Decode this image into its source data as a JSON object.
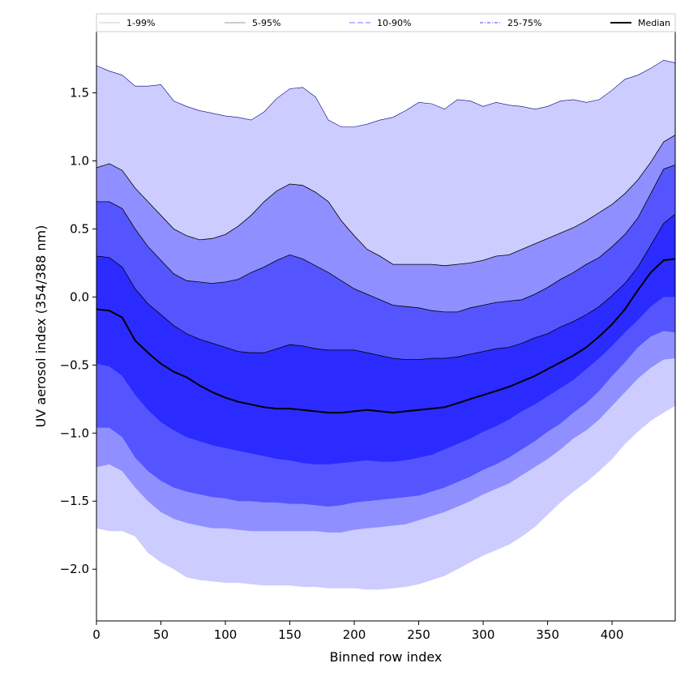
{
  "chart_data": {
    "type": "area",
    "xlabel": "Binned row index",
    "ylabel": "UV aerosol index (354/388 nm)",
    "xlim": [
      0,
      449
    ],
    "ylim": [
      -2.38,
      1.95
    ],
    "xticks": [
      0,
      50,
      100,
      150,
      200,
      250,
      300,
      350,
      400
    ],
    "yticks": [
      1.5,
      1.0,
      0.5,
      0.0,
      -0.5,
      -1.0,
      -1.5,
      -2.0
    ],
    "ytick_labels": [
      "1.5",
      "1.0",
      "0.5",
      "0.0",
      "−0.5",
      "−1.0",
      "−1.5",
      "−2.0"
    ],
    "grid": false,
    "legend_position": "top",
    "x": [
      0,
      10,
      20,
      30,
      40,
      50,
      60,
      70,
      80,
      90,
      100,
      110,
      120,
      130,
      140,
      150,
      160,
      170,
      180,
      190,
      200,
      210,
      220,
      230,
      240,
      250,
      260,
      270,
      280,
      290,
      300,
      310,
      320,
      330,
      340,
      350,
      360,
      370,
      380,
      390,
      400,
      410,
      420,
      430,
      440,
      449
    ],
    "bands": [
      {
        "name": "1-99%",
        "fill": "#ccccff",
        "edge": "#cccccc",
        "dash": "none",
        "upper": [
          1.7,
          1.66,
          1.63,
          1.55,
          1.55,
          1.56,
          1.44,
          1.4,
          1.37,
          1.35,
          1.33,
          1.32,
          1.3,
          1.36,
          1.46,
          1.53,
          1.54,
          1.47,
          1.3,
          1.25,
          1.25,
          1.27,
          1.3,
          1.32,
          1.37,
          1.43,
          1.42,
          1.38,
          1.45,
          1.44,
          1.4,
          1.43,
          1.41,
          1.4,
          1.38,
          1.4,
          1.44,
          1.45,
          1.43,
          1.45,
          1.52,
          1.6,
          1.63,
          1.68,
          1.74,
          1.72
        ],
        "lower": [
          -1.7,
          -1.72,
          -1.72,
          -1.76,
          -1.88,
          -1.95,
          -2.0,
          -2.06,
          -2.08,
          -2.09,
          -2.1,
          -2.1,
          -2.11,
          -2.12,
          -2.12,
          -2.12,
          -2.13,
          -2.13,
          -2.14,
          -2.14,
          -2.14,
          -2.15,
          -2.15,
          -2.14,
          -2.13,
          -2.11,
          -2.08,
          -2.05,
          -2.0,
          -1.95,
          -1.9,
          -1.86,
          -1.82,
          -1.76,
          -1.69,
          -1.6,
          -1.51,
          -1.43,
          -1.36,
          -1.28,
          -1.19,
          -1.08,
          -0.99,
          -0.91,
          -0.85,
          -0.8
        ]
      },
      {
        "name": "5-95%",
        "fill": "#8f8fff",
        "edge": "#999999",
        "dash": "none",
        "upper": [
          0.95,
          0.98,
          0.93,
          0.8,
          0.7,
          0.6,
          0.5,
          0.45,
          0.42,
          0.43,
          0.46,
          0.52,
          0.6,
          0.7,
          0.78,
          0.83,
          0.82,
          0.77,
          0.7,
          0.56,
          0.45,
          0.35,
          0.3,
          0.24,
          0.24,
          0.24,
          0.24,
          0.23,
          0.24,
          0.25,
          0.27,
          0.3,
          0.31,
          0.35,
          0.39,
          0.43,
          0.47,
          0.51,
          0.56,
          0.62,
          0.68,
          0.76,
          0.86,
          0.99,
          1.14,
          1.19
        ],
        "lower": [
          -1.25,
          -1.23,
          -1.28,
          -1.4,
          -1.5,
          -1.58,
          -1.63,
          -1.66,
          -1.68,
          -1.7,
          -1.7,
          -1.71,
          -1.72,
          -1.72,
          -1.72,
          -1.72,
          -1.72,
          -1.72,
          -1.73,
          -1.73,
          -1.71,
          -1.7,
          -1.69,
          -1.68,
          -1.67,
          -1.64,
          -1.61,
          -1.58,
          -1.54,
          -1.5,
          -1.45,
          -1.41,
          -1.37,
          -1.31,
          -1.25,
          -1.19,
          -1.12,
          -1.04,
          -0.98,
          -0.9,
          -0.8,
          -0.7,
          -0.6,
          -0.52,
          -0.46,
          -0.45
        ]
      },
      {
        "name": "10-90%",
        "fill": "#5555ff",
        "edge": "#7777ff",
        "dash": "7,3",
        "upper": [
          0.7,
          0.7,
          0.65,
          0.5,
          0.37,
          0.27,
          0.17,
          0.12,
          0.11,
          0.1,
          0.11,
          0.13,
          0.18,
          0.22,
          0.27,
          0.31,
          0.28,
          0.23,
          0.18,
          0.12,
          0.06,
          0.02,
          -0.02,
          -0.06,
          -0.07,
          -0.08,
          -0.1,
          -0.11,
          -0.11,
          -0.08,
          -0.06,
          -0.04,
          -0.03,
          -0.02,
          0.02,
          0.07,
          0.13,
          0.18,
          0.24,
          0.29,
          0.37,
          0.46,
          0.58,
          0.76,
          0.94,
          0.97
        ],
        "lower": [
          -0.96,
          -0.96,
          -1.03,
          -1.18,
          -1.28,
          -1.35,
          -1.4,
          -1.43,
          -1.45,
          -1.47,
          -1.48,
          -1.5,
          -1.5,
          -1.51,
          -1.51,
          -1.52,
          -1.52,
          -1.53,
          -1.54,
          -1.53,
          -1.51,
          -1.5,
          -1.49,
          -1.48,
          -1.47,
          -1.46,
          -1.43,
          -1.4,
          -1.36,
          -1.32,
          -1.27,
          -1.23,
          -1.18,
          -1.12,
          -1.06,
          -0.99,
          -0.93,
          -0.85,
          -0.78,
          -0.69,
          -0.58,
          -0.48,
          -0.37,
          -0.29,
          -0.25,
          -0.26
        ]
      },
      {
        "name": "25-75%",
        "fill": "#2b2bff",
        "edge": "#4444ee",
        "dash": "4,2,1,2",
        "upper": [
          0.3,
          0.29,
          0.22,
          0.06,
          -0.05,
          -0.13,
          -0.21,
          -0.27,
          -0.31,
          -0.34,
          -0.37,
          -0.4,
          -0.41,
          -0.41,
          -0.38,
          -0.35,
          -0.36,
          -0.38,
          -0.39,
          -0.39,
          -0.39,
          -0.41,
          -0.43,
          -0.45,
          -0.46,
          -0.46,
          -0.45,
          -0.45,
          -0.44,
          -0.42,
          -0.4,
          -0.38,
          -0.37,
          -0.34,
          -0.3,
          -0.27,
          -0.22,
          -0.18,
          -0.13,
          -0.07,
          0.01,
          0.1,
          0.22,
          0.38,
          0.54,
          0.61
        ],
        "lower": [
          -0.49,
          -0.51,
          -0.58,
          -0.72,
          -0.83,
          -0.92,
          -0.98,
          -1.03,
          -1.06,
          -1.09,
          -1.11,
          -1.13,
          -1.15,
          -1.17,
          -1.19,
          -1.2,
          -1.22,
          -1.23,
          -1.23,
          -1.22,
          -1.21,
          -1.2,
          -1.21,
          -1.21,
          -1.2,
          -1.18,
          -1.16,
          -1.12,
          -1.08,
          -1.04,
          -0.99,
          -0.95,
          -0.9,
          -0.84,
          -0.79,
          -0.73,
          -0.67,
          -0.61,
          -0.53,
          -0.45,
          -0.36,
          -0.26,
          -0.17,
          -0.07,
          0.0,
          0.0
        ]
      }
    ],
    "series": [
      {
        "name": "Median",
        "color": "#000000",
        "values": [
          -0.09,
          -0.1,
          -0.15,
          -0.32,
          -0.41,
          -0.49,
          -0.55,
          -0.59,
          -0.65,
          -0.7,
          -0.74,
          -0.77,
          -0.79,
          -0.81,
          -0.82,
          -0.82,
          -0.83,
          -0.84,
          -0.85,
          -0.85,
          -0.84,
          -0.83,
          -0.84,
          -0.85,
          -0.84,
          -0.83,
          -0.82,
          -0.81,
          -0.78,
          -0.75,
          -0.72,
          -0.69,
          -0.66,
          -0.62,
          -0.58,
          -0.53,
          -0.48,
          -0.43,
          -0.37,
          -0.29,
          -0.2,
          -0.09,
          0.05,
          0.18,
          0.27,
          0.28
        ]
      }
    ]
  }
}
